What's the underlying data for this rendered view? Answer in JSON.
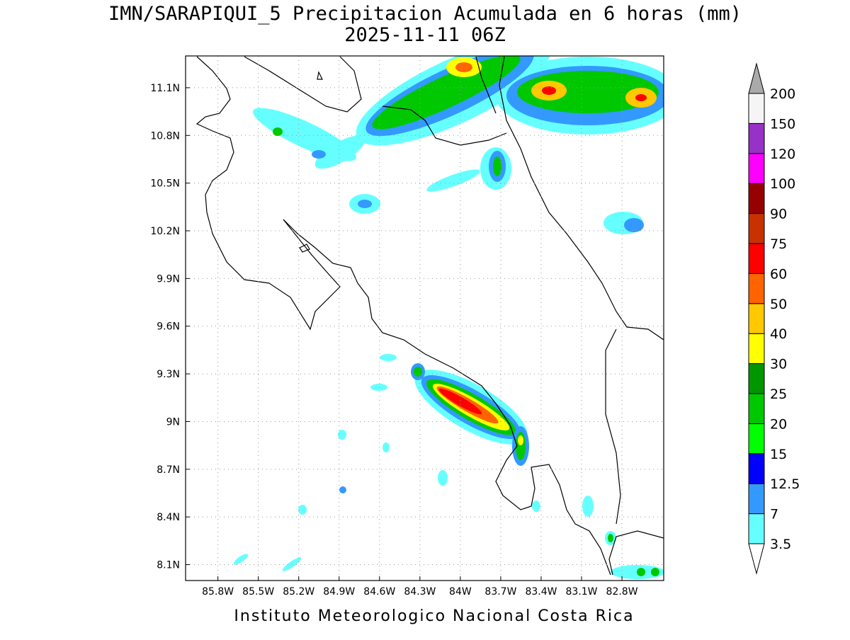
{
  "map": {
    "title": "IMN/SARAPIQUI_5 Precipitacion Acumulada en 6 horas (mm)",
    "subtitle": "2025-11-11 06Z",
    "footer": "Instituto Meteorologico Nacional Costa Rica",
    "lon_range": [
      -86.04,
      -82.49
    ],
    "lat_range": [
      8.0,
      11.3
    ],
    "lon_ticks": [
      {
        "value": -85.8,
        "label": "85.8W"
      },
      {
        "value": -85.5,
        "label": "85.5W"
      },
      {
        "value": -85.2,
        "label": "85.2W"
      },
      {
        "value": -84.9,
        "label": "84.9W"
      },
      {
        "value": -84.6,
        "label": "84.6W"
      },
      {
        "value": -84.3,
        "label": "84.3W"
      },
      {
        "value": -84.0,
        "label": "84W"
      },
      {
        "value": -83.7,
        "label": "83.7W"
      },
      {
        "value": -83.4,
        "label": "83.4W"
      },
      {
        "value": -83.1,
        "label": "83.1W"
      },
      {
        "value": -82.8,
        "label": "82.8W"
      }
    ],
    "lat_ticks": [
      {
        "value": 8.1,
        "label": "8.1N"
      },
      {
        "value": 8.4,
        "label": "8.4N"
      },
      {
        "value": 8.7,
        "label": "8.7N"
      },
      {
        "value": 9.0,
        "label": "9N"
      },
      {
        "value": 9.3,
        "label": "9.3N"
      },
      {
        "value": 9.6,
        "label": "9.6N"
      },
      {
        "value": 9.9,
        "label": "9.9N"
      },
      {
        "value": 10.2,
        "label": "10.2N"
      },
      {
        "value": 10.5,
        "label": "10.5N"
      },
      {
        "value": 10.8,
        "label": "10.8N"
      },
      {
        "value": 11.1,
        "label": "11.1N"
      }
    ],
    "grid": true,
    "colorbar": {
      "levels": [
        3.5,
        7,
        12.5,
        15,
        20,
        25,
        30,
        40,
        50,
        60,
        75,
        90,
        100,
        120,
        150,
        200
      ],
      "colors": [
        "#66ffff",
        "#3399ff",
        "#0000ff",
        "#00ff00",
        "#00c800",
        "#009600",
        "#ffff00",
        "#ffc800",
        "#ff6400",
        "#ff0000",
        "#c83200",
        "#960000",
        "#ff00ff",
        "#9632c8",
        "#f5f5f5"
      ],
      "under_color": "#ffffff",
      "over_color": "#aaaaaa"
    }
  }
}
